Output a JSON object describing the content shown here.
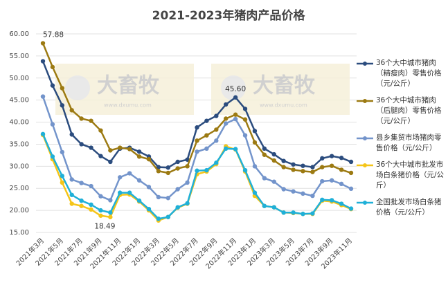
{
  "chart_data": {
    "type": "line",
    "title": "2021-2023年猪肉产品价格",
    "watermark": {
      "text": "大畜牧",
      "url": "www.dxumu.com"
    },
    "categories": [
      "2021年3月",
      null,
      "2021年5月",
      null,
      "2021年7月",
      null,
      "2021年9月",
      null,
      "2021年11月",
      null,
      "2022年1月",
      null,
      "2022年3月",
      null,
      "2022年5月",
      null,
      "2022年7月",
      null,
      "2022年9月",
      null,
      "2022年11月",
      null,
      "2023年1月",
      null,
      "2023年3月",
      null,
      "2023年5月",
      null,
      "2023年7月",
      null,
      "2023年9月",
      null,
      "2023年11月"
    ],
    "ylim": [
      15,
      60
    ],
    "yticks": [
      {
        "value": 15,
        "label": "15.00"
      },
      {
        "value": 20,
        "label": "20.00"
      },
      {
        "value": 25,
        "label": "25.00"
      },
      {
        "value": 30,
        "label": "30.00"
      },
      {
        "value": 35,
        "label": "35.00"
      },
      {
        "value": 40,
        "label": "40.00"
      },
      {
        "value": 45,
        "label": "45.00"
      },
      {
        "value": 50,
        "label": "50.00"
      },
      {
        "value": 55,
        "label": "55.00"
      },
      {
        "value": 60,
        "label": "60.00"
      }
    ],
    "grid": true,
    "series": [
      {
        "name": "36个大中城市猪肉（精瘦肉）零售价格（元/公斤）",
        "color": "#2b4c7e",
        "values": [
          53.8,
          48.3,
          43.8,
          37.2,
          35,
          34.2,
          32.3,
          31,
          34,
          34.2,
          33.3,
          32.2,
          29.8,
          29.7,
          31,
          31.5,
          38.8,
          40.3,
          41.4,
          44,
          45.6,
          43,
          38,
          34,
          32.7,
          31.2,
          30.4,
          30.1,
          29.8,
          31.8,
          32.3,
          31.9,
          31
        ],
        "value_labels": [
          null,
          null,
          null,
          null,
          null,
          null,
          null,
          null,
          null,
          null,
          null,
          null,
          null,
          null,
          null,
          null,
          null,
          null,
          null,
          null,
          "45.60",
          null,
          null,
          null,
          null,
          null,
          null,
          null,
          null,
          null,
          null,
          null,
          null
        ]
      },
      {
        "name": "36个大中城市猪肉（后腿肉）零售价格（元/公斤）",
        "color": "#9c7a12",
        "values": [
          57.88,
          52.5,
          47.7,
          42.7,
          40.8,
          40.3,
          38.1,
          33.6,
          34.2,
          33.9,
          32.2,
          31.6,
          28.9,
          28.5,
          29.5,
          30,
          35.8,
          37,
          38.3,
          40.8,
          41.7,
          40.6,
          35.4,
          32.6,
          31.3,
          29.8,
          29.2,
          28.9,
          28.7,
          29.8,
          30.1,
          29.2,
          28.5
        ],
        "value_labels": [
          "57.88",
          null,
          null,
          null,
          null,
          null,
          null,
          null,
          null,
          null,
          null,
          null,
          null,
          null,
          null,
          null,
          null,
          null,
          null,
          null,
          null,
          null,
          null,
          null,
          null,
          null,
          null,
          null,
          null,
          null,
          null,
          null,
          null
        ]
      },
      {
        "name": "县乡集贸市场猪肉零售价格（元/公斤）",
        "color": "#7394cb",
        "values": [
          45.8,
          39.5,
          33.2,
          27,
          26.2,
          25.5,
          23.2,
          22.3,
          27.5,
          28.4,
          26.8,
          25.3,
          23,
          22.8,
          24.8,
          26.3,
          33.3,
          34,
          35.8,
          39.7,
          40.7,
          37,
          30,
          27.3,
          26.5,
          24.8,
          24.3,
          23.8,
          23.3,
          26.6,
          26.8,
          26,
          24.9
        ]
      },
      {
        "name": "36个大中城市批发市场白条猪价格（元/公斤）",
        "color": "#f5c518",
        "values": [
          37.1,
          31.6,
          26.3,
          21.5,
          21,
          20.2,
          18.8,
          18.49,
          23.5,
          23.6,
          22,
          20,
          17.7,
          18.5,
          20.6,
          21.5,
          28.2,
          28.8,
          30.5,
          34.5,
          33.8,
          28.8,
          23.3,
          21,
          20.7,
          19.5,
          19.4,
          19.2,
          19.2,
          22.2,
          22,
          21.2,
          20.3
        ],
        "value_labels": [
          null,
          null,
          null,
          null,
          null,
          null,
          null,
          "18.49",
          null,
          null,
          null,
          null,
          null,
          null,
          null,
          null,
          null,
          null,
          null,
          null,
          null,
          null,
          null,
          null,
          null,
          null,
          null,
          null,
          null,
          null,
          null,
          null,
          null
        ]
      },
      {
        "name": "全国批发市场白条猪价格（元/公斤）",
        "color": "#1fb0d8",
        "values": [
          37.3,
          32.2,
          27.8,
          23.5,
          22.2,
          21.3,
          20,
          19.5,
          24,
          24,
          22.2,
          20.3,
          18.1,
          18.5,
          20.7,
          21.6,
          29,
          29.1,
          30.8,
          34,
          33.9,
          29.1,
          24,
          21,
          20.7,
          19.5,
          19.5,
          19.2,
          19.3,
          22.4,
          22.3,
          21.5,
          20.4
        ]
      }
    ]
  }
}
